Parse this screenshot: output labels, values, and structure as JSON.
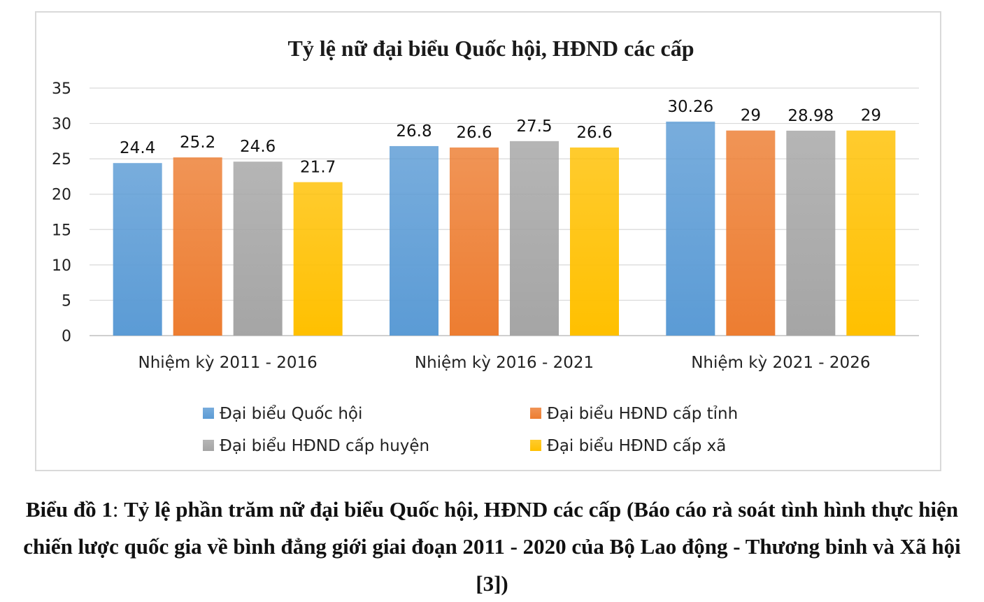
{
  "chart_data": {
    "type": "bar",
    "title": "Tỷ lệ nữ đại biểu Quốc hội, HĐND các cấp",
    "xlabel": "",
    "ylabel": "",
    "ylim": [
      0,
      35
    ],
    "yticks": [
      0,
      5,
      10,
      15,
      20,
      25,
      30,
      35
    ],
    "grid": true,
    "legend_position": "bottom",
    "categories": [
      "Nhiệm kỳ 2011 - 2016",
      "Nhiệm kỳ 2016 - 2021",
      "Nhiệm kỳ 2021 - 2026"
    ],
    "series": [
      {
        "name": "Đại biểu Quốc hội",
        "values": [
          24.4,
          26.8,
          30.26
        ],
        "labels": [
          "24.4",
          "26.8",
          "30.26"
        ],
        "color": "#5b9bd5"
      },
      {
        "name": "Đại biểu HĐND cấp tỉnh",
        "values": [
          25.2,
          26.6,
          29
        ],
        "labels": [
          "25.2",
          "26.6",
          "29"
        ],
        "color": "#ed7d31"
      },
      {
        "name": "Đại biểu HĐND cấp huyện",
        "values": [
          24.6,
          27.5,
          28.98
        ],
        "labels": [
          "24.6",
          "27.5",
          "28.98"
        ],
        "color": "#a5a5a5"
      },
      {
        "name": "Đại biểu HĐND cấp xã",
        "values": [
          21.7,
          26.6,
          29
        ],
        "labels": [
          "21.7",
          "26.6",
          "29"
        ],
        "color": "#ffc000"
      }
    ]
  },
  "caption": {
    "figure_label": "Biểu đồ 1",
    "separator": ": ",
    "text": "Tỷ lệ phần trăm nữ đại biểu Quốc hội, HĐND các cấp (Báo cáo rà soát tình hình thực hiện chiến lược quốc gia về bình đẳng giới giai đoạn 2011 - 2020 của Bộ Lao động - Thương binh và Xã hội [3])"
  }
}
